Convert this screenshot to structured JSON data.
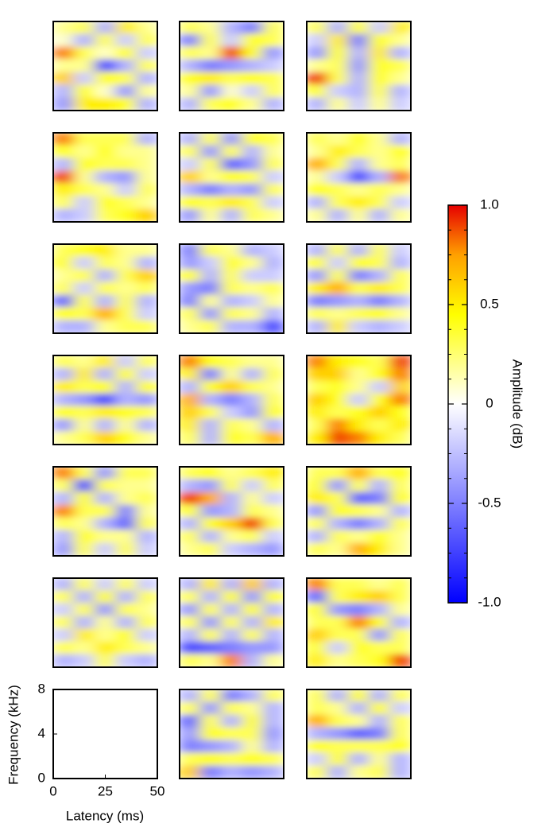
{
  "chart_data": {
    "type": "heatmap",
    "xlabel": "Latency (ms)",
    "ylabel": "Frequency (kHz)",
    "xlim": [
      0,
      50
    ],
    "xticks": [
      0,
      25,
      50
    ],
    "ylim": [
      0,
      8
    ],
    "yticks": [
      0,
      4,
      8
    ],
    "colorbar_label": "Amplitude (dB)",
    "zlim": [
      -1,
      1
    ],
    "zticks": [
      {
        "value": 1,
        "label": "1.0"
      },
      0.5,
      0,
      -0.5,
      {
        "value": -1,
        "label": "-1.0"
      }
    ],
    "zminorticks": [
      0.875,
      0.75,
      0.625,
      0.375,
      0.25,
      0.125,
      -0.125,
      -0.25,
      -0.375,
      -0.625,
      -0.75,
      -0.875
    ],
    "colormap": [
      {
        "value": -1,
        "color": "#0000ff"
      },
      {
        "value": 0,
        "color": "#ffffff"
      },
      {
        "value": 0.45,
        "color": "#ffff00"
      },
      {
        "value": 0.75,
        "color": "#ffa000"
      },
      {
        "value": 1,
        "color": "#e60000"
      }
    ],
    "panels": [
      {
        "values": [
          [
            0.2,
            0.3,
            -0.3,
            0.5,
            0.2
          ],
          [
            0.1,
            -0.3,
            0.3,
            -0.2,
            0.3
          ],
          [
            0.8,
            0.3,
            0.1,
            0.4,
            -0.2
          ],
          [
            0.2,
            0.2,
            -0.7,
            -0.3,
            0.3
          ],
          [
            0.6,
            -0.2,
            0.4,
            0.3,
            -0.3
          ],
          [
            -0.3,
            0.4,
            0.1,
            -0.4,
            0.2
          ],
          [
            -0.4,
            0.5,
            0.5,
            0.4,
            -0.3
          ]
        ]
      },
      {
        "values": [
          [
            0.3,
            0.2,
            -0.3,
            -0.5,
            0.3
          ],
          [
            -0.5,
            0.3,
            -0.2,
            0.4,
            0.3
          ],
          [
            0.3,
            0.2,
            0.9,
            0.4,
            -0.4
          ],
          [
            -0.3,
            -0.5,
            -0.4,
            -0.3,
            -0.2
          ],
          [
            0.4,
            0.5,
            0.3,
            0.4,
            0.3
          ],
          [
            0.2,
            -0.4,
            0.1,
            -0.2,
            0.3
          ],
          [
            -0.3,
            0.3,
            0.4,
            0.2,
            -0.3
          ]
        ]
      },
      {
        "values": [
          [
            0.3,
            -0.3,
            0.4,
            -0.2,
            0.5
          ],
          [
            -0.2,
            0.5,
            -0.5,
            0.4,
            0.2
          ],
          [
            -0.4,
            0.4,
            -0.3,
            0.5,
            -0.3
          ],
          [
            0.2,
            0.3,
            -0.4,
            0.4,
            0.3
          ],
          [
            0.9,
            0.3,
            -0.3,
            0.4,
            0.2
          ],
          [
            0.4,
            -0.2,
            -0.3,
            0.3,
            -0.3
          ],
          [
            -0.3,
            0.2,
            -0.2,
            0.2,
            -0.2
          ]
        ]
      },
      {
        "values": [
          [
            0.8,
            0.3,
            0.3,
            0.3,
            -0.3
          ],
          [
            0.4,
            0.2,
            0.4,
            0.2,
            0.2
          ],
          [
            -0.3,
            0.4,
            0.3,
            0.3,
            0.2
          ],
          [
            0.9,
            0.2,
            -0.3,
            -0.4,
            0.2
          ],
          [
            0.5,
            0.3,
            0.2,
            -0.2,
            0.3
          ],
          [
            0.3,
            -0.2,
            0.4,
            0.3,
            0.2
          ],
          [
            -0.3,
            -0.2,
            0.3,
            0.4,
            0.6
          ]
        ]
      },
      {
        "values": [
          [
            -0.3,
            0.3,
            -0.4,
            0.4,
            0.3
          ],
          [
            0.3,
            -0.4,
            0.3,
            -0.3,
            0.2
          ],
          [
            -0.2,
            0.3,
            -0.6,
            -0.4,
            0.3
          ],
          [
            0.6,
            0.2,
            0.4,
            0.3,
            -0.2
          ],
          [
            -0.3,
            -0.5,
            -0.3,
            -0.4,
            0.3
          ],
          [
            0.4,
            0.3,
            0.5,
            0.3,
            -0.2
          ],
          [
            -0.4,
            0.2,
            -0.3,
            0.3,
            0.2
          ]
        ]
      },
      {
        "values": [
          [
            0.3,
            0.2,
            0.4,
            0.2,
            -0.3
          ],
          [
            0.2,
            0.5,
            0.3,
            0.2,
            0.4
          ],
          [
            0.7,
            0.3,
            -0.3,
            0.2,
            0.3
          ],
          [
            0.2,
            -0.2,
            -0.7,
            -0.3,
            0.8
          ],
          [
            0.4,
            0.3,
            0.2,
            0.3,
            0.2
          ],
          [
            -0.3,
            0.3,
            0.5,
            0.3,
            -0.2
          ],
          [
            0.2,
            -0.3,
            0.2,
            -0.3,
            0.2
          ]
        ]
      },
      {
        "values": [
          [
            0.3,
            0.4,
            0.5,
            0.2,
            0.2
          ],
          [
            0.4,
            -0.2,
            0.3,
            0.2,
            -0.3
          ],
          [
            0.2,
            0.3,
            -0.3,
            0.3,
            0.6
          ],
          [
            0.3,
            -0.2,
            0.3,
            0.2,
            0.3
          ],
          [
            -0.6,
            0.3,
            -0.3,
            0.3,
            -0.3
          ],
          [
            0.4,
            0.3,
            0.7,
            0.3,
            -0.2
          ],
          [
            -0.3,
            -0.3,
            0.2,
            0.3,
            0.3
          ]
        ]
      },
      {
        "values": [
          [
            -0.5,
            0.3,
            0.2,
            -0.3,
            -0.2
          ],
          [
            -0.4,
            -0.2,
            0.4,
            0.2,
            -0.3
          ],
          [
            0.4,
            -0.3,
            0.3,
            -0.2,
            -0.2
          ],
          [
            -0.4,
            -0.5,
            0.3,
            0.2,
            0.3
          ],
          [
            -0.5,
            0.2,
            -0.3,
            -0.2,
            0.2
          ],
          [
            0.3,
            -0.4,
            0.3,
            0.2,
            -0.3
          ],
          [
            0.2,
            0.3,
            -0.3,
            -0.3,
            -0.7
          ]
        ]
      },
      {
        "values": [
          [
            -0.3,
            0.3,
            -0.3,
            0.3,
            -0.2
          ],
          [
            0.4,
            -0.2,
            0.4,
            0.3,
            -0.3
          ],
          [
            -0.4,
            0.3,
            -0.5,
            -0.3,
            0.3
          ],
          [
            0.5,
            0.7,
            0.3,
            0.5,
            0.3
          ],
          [
            -0.5,
            -0.4,
            -0.3,
            -0.5,
            -0.3
          ],
          [
            0.3,
            0.2,
            0.3,
            0.4,
            0.2
          ],
          [
            -0.3,
            0.5,
            -0.2,
            -0.3,
            -0.2
          ]
        ]
      },
      {
        "values": [
          [
            0.3,
            0.2,
            0.5,
            -0.2,
            0.3
          ],
          [
            -0.3,
            0.5,
            -0.3,
            0.4,
            -0.2
          ],
          [
            0.5,
            0.3,
            0.4,
            -0.3,
            0.4
          ],
          [
            -0.3,
            -0.4,
            -0.7,
            -0.3,
            -0.4
          ],
          [
            0.4,
            0.3,
            0.5,
            0.4,
            0.3
          ],
          [
            -0.4,
            0.2,
            -0.3,
            0.2,
            -0.3
          ],
          [
            0.2,
            0.3,
            0.6,
            0.4,
            0.2
          ]
        ]
      },
      {
        "values": [
          [
            0.8,
            0.4,
            0.3,
            0.2,
            0.2
          ],
          [
            0.5,
            -0.5,
            0.2,
            -0.3,
            0.3
          ],
          [
            -0.3,
            0.4,
            0.6,
            0.3,
            0.2
          ],
          [
            0.7,
            -0.3,
            -0.5,
            -0.3,
            0.3
          ],
          [
            0.6,
            0.3,
            -0.2,
            -0.4,
            0.4
          ],
          [
            0.5,
            -0.3,
            0.3,
            0.2,
            -0.3
          ],
          [
            0.3,
            -0.3,
            0.4,
            0.3,
            0.7
          ]
        ]
      },
      {
        "values": [
          [
            0.8,
            0.5,
            0.4,
            0.3,
            0.9
          ],
          [
            0.6,
            0.6,
            0.2,
            0.4,
            0.8
          ],
          [
            0.3,
            0.4,
            0.2,
            -0.2,
            0.6
          ],
          [
            0.6,
            0.4,
            -0.2,
            0.4,
            0.8
          ],
          [
            0.5,
            0.3,
            0.4,
            0.6,
            0.4
          ],
          [
            0.3,
            0.8,
            0.5,
            0.3,
            0.5
          ],
          [
            0.5,
            0.9,
            0.8,
            0.5,
            0.3
          ]
        ]
      },
      {
        "values": [
          [
            0.8,
            0.3,
            -0.4,
            0.3,
            0.3
          ],
          [
            0.3,
            -0.7,
            0.3,
            0.2,
            0.2
          ],
          [
            -0.3,
            0.4,
            -0.3,
            0.2,
            0.3
          ],
          [
            0.8,
            0.3,
            0.3,
            -0.5,
            0.2
          ],
          [
            0.3,
            0.2,
            -0.3,
            -0.6,
            0.3
          ],
          [
            -0.3,
            0.4,
            0.2,
            0.2,
            -0.3
          ],
          [
            -0.4,
            0.3,
            -0.2,
            0.3,
            -0.2
          ]
        ]
      },
      {
        "values": [
          [
            0.3,
            0.4,
            0.2,
            0.3,
            0.5
          ],
          [
            -0.3,
            -0.4,
            0.3,
            -0.2,
            0.3
          ],
          [
            0.9,
            0.7,
            -0.3,
            0.2,
            -0.2
          ],
          [
            0.4,
            -0.4,
            -0.3,
            0.3,
            0.2
          ],
          [
            -0.3,
            0.4,
            0.6,
            0.9,
            0.3
          ],
          [
            0.3,
            -0.3,
            0.2,
            0.3,
            -0.2
          ],
          [
            0.2,
            0.3,
            -0.2,
            -0.3,
            -0.4
          ]
        ]
      },
      {
        "values": [
          [
            0.3,
            0.3,
            0.7,
            0.3,
            0.4
          ],
          [
            0.4,
            -0.4,
            0.3,
            -0.3,
            0.3
          ],
          [
            0.5,
            0.3,
            -0.6,
            -0.5,
            0.4
          ],
          [
            -0.4,
            0.4,
            0.3,
            0.2,
            -0.3
          ],
          [
            0.3,
            -0.3,
            -0.5,
            -0.3,
            0.3
          ],
          [
            -0.3,
            0.3,
            0.2,
            0.4,
            0.2
          ],
          [
            0.3,
            0.2,
            0.7,
            0.5,
            0.2
          ]
        ]
      },
      {
        "values": [
          [
            -0.3,
            0.3,
            -0.2,
            0.3,
            -0.2
          ],
          [
            0.3,
            -0.3,
            0.4,
            -0.3,
            0.3
          ],
          [
            -0.2,
            0.3,
            -0.4,
            0.3,
            0.2
          ],
          [
            0.3,
            -0.3,
            0.2,
            -0.3,
            0.3
          ],
          [
            -0.2,
            0.5,
            0.2,
            0.4,
            -0.2
          ],
          [
            0.3,
            0.2,
            0.5,
            0.3,
            0.2
          ],
          [
            -0.3,
            -0.2,
            0.3,
            -0.2,
            -0.3
          ]
        ]
      },
      {
        "values": [
          [
            -0.3,
            0.5,
            -0.3,
            0.6,
            -0.3
          ],
          [
            0.3,
            -0.3,
            0.4,
            -0.4,
            0.4
          ],
          [
            -0.4,
            0.3,
            -0.3,
            0.4,
            -0.3
          ],
          [
            0.3,
            -0.4,
            0.3,
            -0.3,
            0.5
          ],
          [
            -0.3,
            0.3,
            -0.3,
            0.3,
            -0.3
          ],
          [
            -0.7,
            -0.6,
            -0.5,
            -0.4,
            -0.4
          ],
          [
            0.3,
            0.2,
            0.8,
            -0.3,
            0.2
          ]
        ]
      },
      {
        "values": [
          [
            0.8,
            0.3,
            0.3,
            0.2,
            0.3
          ],
          [
            -0.6,
            0.3,
            0.5,
            0.6,
            0.3
          ],
          [
            0.4,
            -0.4,
            -0.5,
            -0.3,
            0.2
          ],
          [
            0.3,
            0.3,
            0.8,
            0.4,
            -0.3
          ],
          [
            0.6,
            0.3,
            0.3,
            -0.4,
            0.3
          ],
          [
            0.4,
            -0.2,
            0.4,
            0.3,
            0.3
          ],
          [
            0.5,
            0.2,
            0.3,
            0.4,
            0.9
          ]
        ]
      },
      {
        "values": [
          [
            -0.3,
            0.3,
            -0.5,
            -0.3,
            0.3
          ],
          [
            0.3,
            -0.4,
            0.3,
            0.2,
            -0.3
          ],
          [
            -0.6,
            0.3,
            -0.3,
            0.4,
            -0.3
          ],
          [
            -0.4,
            0.4,
            0.3,
            0.3,
            -0.4
          ],
          [
            -0.5,
            -0.4,
            -0.3,
            0.2,
            -0.3
          ],
          [
            0.3,
            0.4,
            0.3,
            0.4,
            0.3
          ],
          [
            0.6,
            -0.5,
            -0.3,
            -0.4,
            -0.3
          ]
        ]
      },
      {
        "values": [
          [
            0.3,
            -0.3,
            0.4,
            -0.3,
            0.3
          ],
          [
            0.3,
            0.2,
            -0.3,
            0.4,
            -0.2
          ],
          [
            0.7,
            0.3,
            0.2,
            -0.3,
            0.3
          ],
          [
            -0.3,
            -0.4,
            -0.6,
            -0.5,
            0.3
          ],
          [
            0.4,
            0.3,
            0.3,
            0.3,
            0.4
          ],
          [
            -0.2,
            0.4,
            -0.3,
            0.2,
            -0.3
          ],
          [
            0.3,
            -0.3,
            0.2,
            0.3,
            -0.3
          ]
        ]
      }
    ]
  }
}
